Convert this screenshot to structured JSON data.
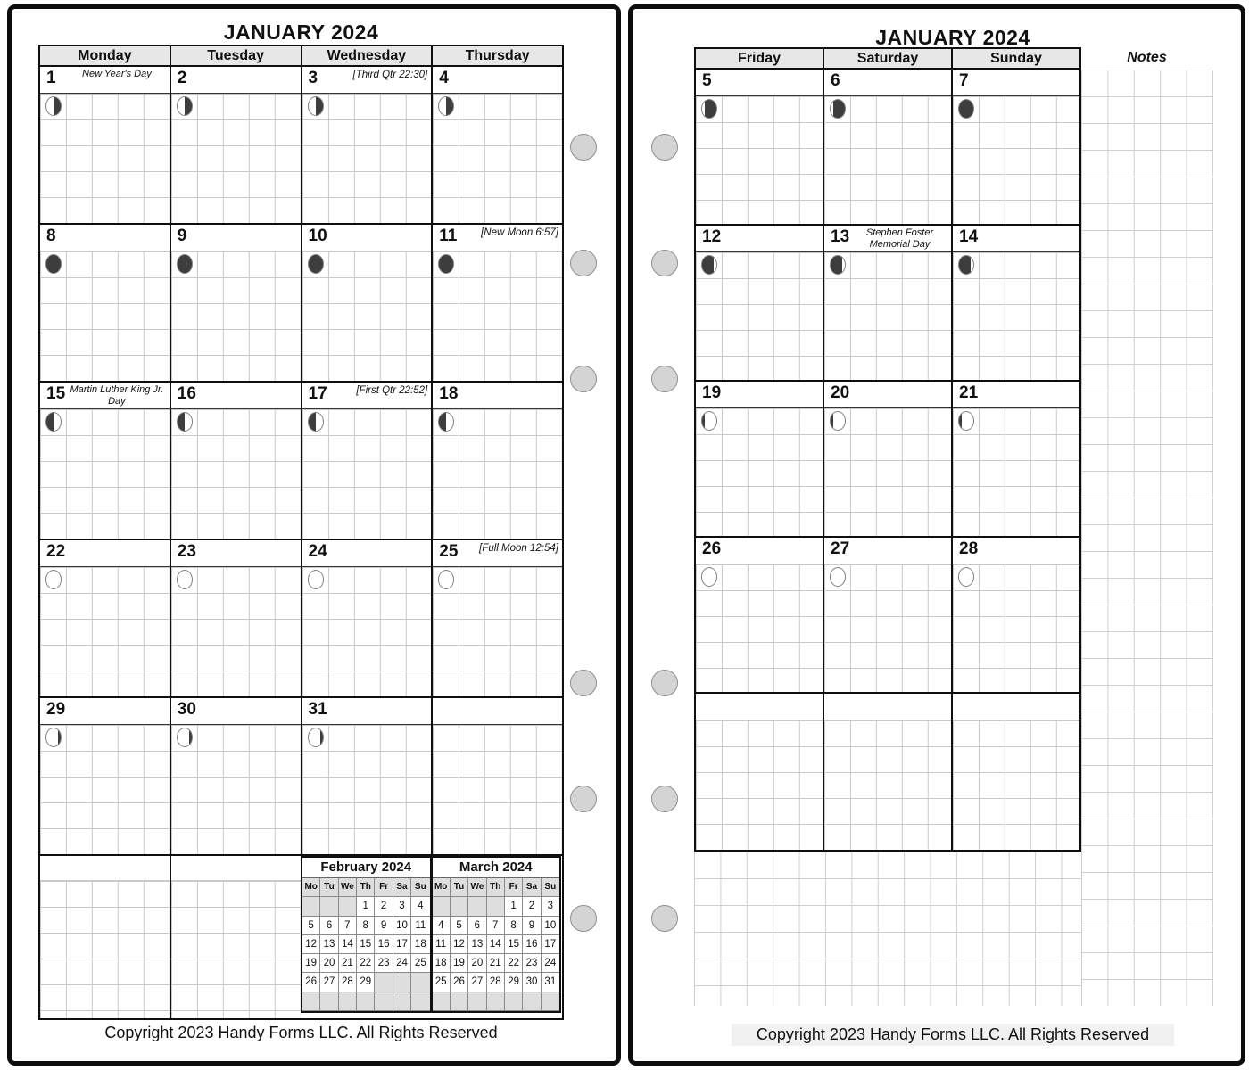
{
  "left_page": {
    "title": "JANUARY 2024",
    "day_headers": [
      "Monday",
      "Tuesday",
      "Wednesday",
      "Thursday"
    ],
    "weeks": [
      [
        {
          "date": "1",
          "holiday": "New Year's Day",
          "moon": "last-quarter"
        },
        {
          "date": "2",
          "moon": "last-quarter"
        },
        {
          "date": "3",
          "note": "[Third Qtr 22:30]",
          "moon": "last-quarter"
        },
        {
          "date": "4",
          "moon": "last-quarter"
        }
      ],
      [
        {
          "date": "8",
          "moon": "new"
        },
        {
          "date": "9",
          "moon": "new"
        },
        {
          "date": "10",
          "moon": "new"
        },
        {
          "date": "11",
          "note": "[New Moon 6:57]",
          "moon": "new"
        }
      ],
      [
        {
          "date": "15",
          "holiday": "Martin Luther King Jr. Day",
          "moon": "first-quarter"
        },
        {
          "date": "16",
          "moon": "first-quarter"
        },
        {
          "date": "17",
          "note": "[First Qtr 22:52]",
          "moon": "first-quarter"
        },
        {
          "date": "18",
          "moon": "first-quarter"
        }
      ],
      [
        {
          "date": "22",
          "moon": "full"
        },
        {
          "date": "23",
          "moon": "full"
        },
        {
          "date": "24",
          "moon": "full"
        },
        {
          "date": "25",
          "note": "[Full Moon 12:54]",
          "moon": "full"
        }
      ],
      [
        {
          "date": "29",
          "moon": "waning-gibbous"
        },
        {
          "date": "30",
          "moon": "waning-gibbous"
        },
        {
          "date": "31",
          "moon": "waning-gibbous"
        },
        {}
      ]
    ],
    "mini_calendars": [
      {
        "title": "February 2024",
        "day_headers": [
          "Mo",
          "Tu",
          "We",
          "Th",
          "Fr",
          "Sa",
          "Su"
        ],
        "rows": [
          [
            "",
            "",
            "",
            "1",
            "2",
            "3",
            "4"
          ],
          [
            "5",
            "6",
            "7",
            "8",
            "9",
            "10",
            "11"
          ],
          [
            "12",
            "13",
            "14",
            "15",
            "16",
            "17",
            "18"
          ],
          [
            "19",
            "20",
            "21",
            "22",
            "23",
            "24",
            "25"
          ],
          [
            "26",
            "27",
            "28",
            "29",
            "",
            "",
            ""
          ],
          [
            "",
            "",
            "",
            "",
            "",
            "",
            ""
          ]
        ]
      },
      {
        "title": "March 2024",
        "day_headers": [
          "Mo",
          "Tu",
          "We",
          "Th",
          "Fr",
          "Sa",
          "Su"
        ],
        "rows": [
          [
            "",
            "",
            "",
            "",
            "1",
            "2",
            "3"
          ],
          [
            "4",
            "5",
            "6",
            "7",
            "8",
            "9",
            "10"
          ],
          [
            "11",
            "12",
            "13",
            "14",
            "15",
            "16",
            "17"
          ],
          [
            "18",
            "19",
            "20",
            "21",
            "22",
            "23",
            "24"
          ],
          [
            "25",
            "26",
            "27",
            "28",
            "29",
            "30",
            "31"
          ],
          [
            "",
            "",
            "",
            "",
            "",
            "",
            ""
          ]
        ]
      }
    ],
    "copyright": "Copyright 2023 Handy Forms LLC. All Rights Reserved"
  },
  "right_page": {
    "title": "JANUARY 2024",
    "day_headers": [
      "Friday",
      "Saturday",
      "Sunday"
    ],
    "notes_label": "Notes",
    "weeks": [
      [
        {
          "date": "5",
          "moon": "waning-crescent"
        },
        {
          "date": "6",
          "moon": "waning-crescent"
        },
        {
          "date": "7",
          "moon": "new"
        }
      ],
      [
        {
          "date": "12",
          "moon": "waxing-crescent"
        },
        {
          "date": "13",
          "holiday": "Stephen Foster Memorial Day",
          "moon": "waxing-crescent"
        },
        {
          "date": "14",
          "moon": "waxing-crescent"
        }
      ],
      [
        {
          "date": "19",
          "moon": "waxing-gibbous"
        },
        {
          "date": "20",
          "moon": "waxing-gibbous"
        },
        {
          "date": "21",
          "moon": "waxing-gibbous"
        }
      ],
      [
        {
          "date": "26",
          "moon": "full"
        },
        {
          "date": "27",
          "moon": "full"
        },
        {
          "date": "28",
          "moon": "full"
        }
      ],
      [
        {},
        {},
        {}
      ]
    ],
    "copyright": "Copyright 2023 Handy Forms LLC. All Rights Reserved"
  },
  "colors": {
    "line_black": "#0f0f0f",
    "header_bg": "#e7e7e7",
    "grid_line": "#c9c9c9",
    "moon_dark": "#3d3d3d",
    "hole_fill": "#d4d4d4",
    "minical_shaded": "#dedede"
  }
}
